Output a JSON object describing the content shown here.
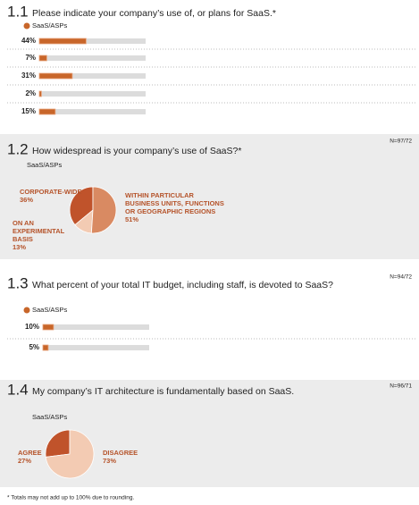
{
  "chart_data": [
    {
      "type": "hbar",
      "number": "1.1",
      "title": "Please indicate your company’s use of, or plans for SaaS.*",
      "xlim": [
        0,
        100
      ],
      "series": [
        {
          "name": "SaaS/ASPs",
          "color": "#c8662a",
          "values": [
            44,
            7,
            31,
            2,
            15
          ],
          "value_labels": [
            "44%",
            "7%",
            "31%",
            "2%",
            "15%"
          ]
        }
      ]
    },
    {
      "type": "pie",
      "number": "1.2",
      "title": "How widespread is your company’s use of SaaS?*",
      "note": "N=97/72",
      "subtitle": "SaaS/ASPs",
      "categories": [
        "CORPORATE-WIDE",
        "ON AN EXPERIMENTAL BASIS",
        "WITHIN PARTICULAR BUSINESS UNITS, FUNCTIONS OR GEOGRAPHIC REGIONS"
      ],
      "values": [
        36,
        13,
        51
      ],
      "value_labels": [
        "36%",
        "13%",
        "51%"
      ],
      "colors": [
        "#c0532b",
        "#f3cbb3",
        "#d98a62"
      ]
    },
    {
      "type": "hbar",
      "number": "1.3",
      "title": "What percent of your total IT budget, including staff, is devoted to SaaS?",
      "note": "N=94/72",
      "xlim": [
        0,
        100
      ],
      "series": [
        {
          "name": "SaaS/ASPs",
          "color": "#c8662a",
          "values": [
            10,
            5
          ],
          "value_labels": [
            "10%",
            "5%"
          ]
        }
      ]
    },
    {
      "type": "pie",
      "number": "1.4",
      "title": "My company’s IT architecture is fundamentally based on SaaS.",
      "note": "N=96/71",
      "subtitle": "SaaS/ASPs",
      "categories": [
        "AGREE",
        "DISAGREE"
      ],
      "values": [
        27,
        73
      ],
      "value_labels": [
        "27%",
        "73%"
      ],
      "colors": [
        "#c0532b",
        "#f3cbb3"
      ]
    }
  ],
  "footnote": "* Totals may not add up to 100% due to rounding."
}
